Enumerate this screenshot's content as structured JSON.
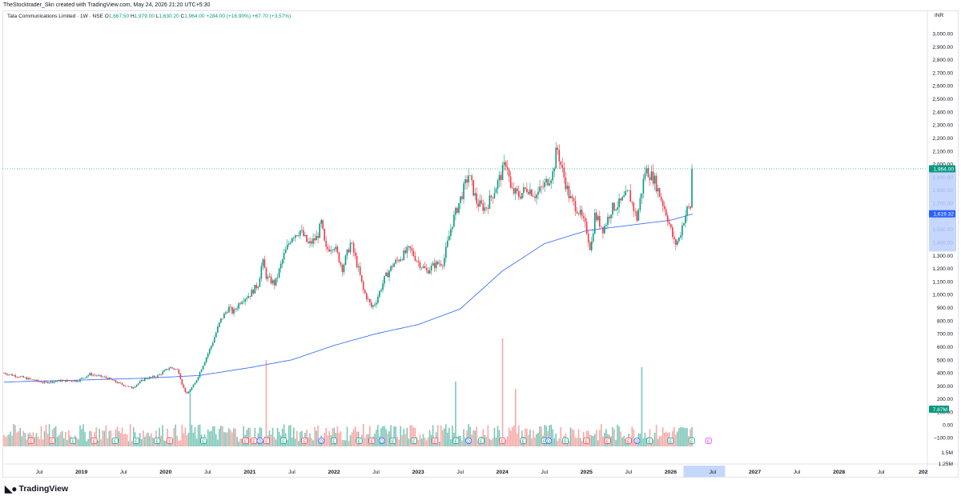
{
  "header": {
    "credit": "TheStocktrader_Skn created with TradingView.com, May 24, 2026 21:20 UTC+5:30"
  },
  "legend": {
    "symbol": "Tata Communications Limited · 1W · NSE",
    "o_label": "O",
    "o_value": "1,667.50",
    "h_label": "H",
    "h_value": "1,979.00",
    "l_label": "L",
    "l_value": "1,630.20",
    "c_label": "C",
    "c_value": "1,964.00",
    "change": "+284.00 (+16.90%)",
    "change2": "+67.70 (+3.57%)"
  },
  "currency": "INR",
  "footer": {
    "brand": "TradingView"
  },
  "colors": {
    "up": "#089981",
    "down": "#f23645",
    "ma": "#2962ff",
    "up_vol": "#7cc7b8",
    "down_vol": "#f7a9a7",
    "axis_text": "#131722",
    "highlight": "#bbd0fb"
  },
  "chart_data": {
    "type": "candlestick",
    "interval": "1W",
    "price_axis": {
      "ticks": [
        3000,
        2900,
        2800,
        2700,
        2600,
        2500,
        2400,
        2300,
        2200,
        2100,
        2000,
        1900,
        1800,
        1700,
        1600,
        1500,
        1400,
        1300,
        1200,
        1100,
        1000,
        900,
        800,
        700,
        600,
        500,
        400,
        300,
        200,
        100
      ],
      "tick_labels": [
        "3,000.00",
        "2,900.00",
        "2,800.00",
        "2,700.00",
        "2,600.00",
        "2,500.00",
        "2,400.00",
        "2,300.00",
        "2,200.00",
        "2,100.00",
        "2,000.00",
        "1,900.00",
        "1,800.00",
        "1,700.00",
        "1,600.00",
        "1,500.00",
        "1,400.00",
        "1,300.00",
        "1,200.00",
        "1,100.00",
        "1,000.00",
        "900.00",
        "800.00",
        "700.00",
        "600.00",
        "500.00",
        "400.00",
        "300.00",
        "200.00",
        "100.00"
      ]
    },
    "volume_axis": {
      "ticks": [
        0,
        -100
      ],
      "tick_labels": [
        "0.00",
        "−100.00"
      ],
      "extra_labels": [
        "1.5M",
        "1.25M"
      ]
    },
    "price_badges": [
      {
        "label": "1,964.00",
        "value": 1964,
        "color": "#089981"
      },
      {
        "label": "1,619.32",
        "value": 1619.32,
        "color": "#2962ff"
      }
    ],
    "volume_badge": {
      "label": "7.87M",
      "color": "#089981"
    },
    "time_axis": {
      "labels": [
        {
          "text": "Jul",
          "year": 2018.5,
          "bold": false
        },
        {
          "text": "2019",
          "year": 2019.0,
          "bold": true
        },
        {
          "text": "Jul",
          "year": 2019.5,
          "bold": false
        },
        {
          "text": "2020",
          "year": 2020.0,
          "bold": true
        },
        {
          "text": "Jul",
          "year": 2020.5,
          "bold": false
        },
        {
          "text": "2021",
          "year": 2021.0,
          "bold": true
        },
        {
          "text": "Jul",
          "year": 2021.5,
          "bold": false
        },
        {
          "text": "2022",
          "year": 2022.0,
          "bold": true
        },
        {
          "text": "Jul",
          "year": 2022.5,
          "bold": false
        },
        {
          "text": "2023",
          "year": 2023.0,
          "bold": true
        },
        {
          "text": "Jul",
          "year": 2023.5,
          "bold": false
        },
        {
          "text": "2024",
          "year": 2024.0,
          "bold": true
        },
        {
          "text": "Jul",
          "year": 2024.5,
          "bold": false
        },
        {
          "text": "2025",
          "year": 2025.0,
          "bold": true
        },
        {
          "text": "Jul",
          "year": 2025.5,
          "bold": false
        },
        {
          "text": "2026",
          "year": 2026.0,
          "bold": true
        },
        {
          "text": "Jul",
          "year": 2026.5,
          "bold": false
        },
        {
          "text": "2027",
          "year": 2027.0,
          "bold": true
        },
        {
          "text": "Jul",
          "year": 2027.5,
          "bold": false
        },
        {
          "text": "2028",
          "year": 2028.0,
          "bold": true
        },
        {
          "text": "Jul",
          "year": 2028.5,
          "bold": false
        },
        {
          "text": "202",
          "year": 2029.0,
          "bold": true
        }
      ],
      "current_label": {
        "text": "",
        "year": 2026.4
      }
    },
    "price_anchors": [
      [
        2018.08,
        398
      ],
      [
        2018.3,
        365
      ],
      [
        2018.55,
        325
      ],
      [
        2018.75,
        340
      ],
      [
        2018.95,
        338
      ],
      [
        2019.1,
        390
      ],
      [
        2019.3,
        362
      ],
      [
        2019.45,
        318
      ],
      [
        2019.6,
        285
      ],
      [
        2019.75,
        355
      ],
      [
        2019.9,
        375
      ],
      [
        2020.05,
        442
      ],
      [
        2020.15,
        420
      ],
      [
        2020.2,
        305
      ],
      [
        2020.25,
        235
      ],
      [
        2020.35,
        320
      ],
      [
        2020.45,
        470
      ],
      [
        2020.55,
        620
      ],
      [
        2020.65,
        800
      ],
      [
        2020.75,
        900
      ],
      [
        2020.8,
        860
      ],
      [
        2020.9,
        960
      ],
      [
        2021.0,
        1000
      ],
      [
        2021.1,
        1080
      ],
      [
        2021.15,
        1260
      ],
      [
        2021.2,
        1130
      ],
      [
        2021.3,
        1080
      ],
      [
        2021.4,
        1290
      ],
      [
        2021.5,
        1450
      ],
      [
        2021.6,
        1490
      ],
      [
        2021.7,
        1380
      ],
      [
        2021.8,
        1440
      ],
      [
        2021.85,
        1550
      ],
      [
        2021.9,
        1340
      ],
      [
        2022.0,
        1380
      ],
      [
        2022.1,
        1200
      ],
      [
        2022.2,
        1400
      ],
      [
        2022.3,
        1170
      ],
      [
        2022.35,
        1030
      ],
      [
        2022.45,
        900
      ],
      [
        2022.5,
        950
      ],
      [
        2022.6,
        1120
      ],
      [
        2022.7,
        1230
      ],
      [
        2022.8,
        1290
      ],
      [
        2022.9,
        1350
      ],
      [
        2023.0,
        1250
      ],
      [
        2023.1,
        1180
      ],
      [
        2023.2,
        1230
      ],
      [
        2023.3,
        1250
      ],
      [
        2023.4,
        1540
      ],
      [
        2023.5,
        1730
      ],
      [
        2023.6,
        1920
      ],
      [
        2023.7,
        1700
      ],
      [
        2023.8,
        1660
      ],
      [
        2023.9,
        1790
      ],
      [
        2024.0,
        1940
      ],
      [
        2024.05,
        2030
      ],
      [
        2024.1,
        1800
      ],
      [
        2024.2,
        1760
      ],
      [
        2024.3,
        1820
      ],
      [
        2024.4,
        1760
      ],
      [
        2024.5,
        1840
      ],
      [
        2024.6,
        1930
      ],
      [
        2024.65,
        2130
      ],
      [
        2024.7,
        1980
      ],
      [
        2024.8,
        1740
      ],
      [
        2024.9,
        1650
      ],
      [
        2025.0,
        1500
      ],
      [
        2025.05,
        1340
      ],
      [
        2025.1,
        1610
      ],
      [
        2025.2,
        1500
      ],
      [
        2025.3,
        1660
      ],
      [
        2025.4,
        1700
      ],
      [
        2025.5,
        1780
      ],
      [
        2025.55,
        1680
      ],
      [
        2025.6,
        1580
      ],
      [
        2025.7,
        1960
      ],
      [
        2025.8,
        1890
      ],
      [
        2025.85,
        1800
      ],
      [
        2025.95,
        1620
      ],
      [
        2026.0,
        1500
      ],
      [
        2026.05,
        1380
      ],
      [
        2026.1,
        1430
      ],
      [
        2026.15,
        1560
      ],
      [
        2026.2,
        1660
      ],
      [
        2026.25,
        1667.5
      ],
      [
        2026.27,
        1964
      ]
    ],
    "ma_anchors": [
      [
        2018.08,
        330
      ],
      [
        2019.0,
        345
      ],
      [
        2019.8,
        360
      ],
      [
        2020.4,
        380
      ],
      [
        2021.0,
        440
      ],
      [
        2021.5,
        500
      ],
      [
        2022.0,
        610
      ],
      [
        2022.5,
        700
      ],
      [
        2023.0,
        770
      ],
      [
        2023.5,
        890
      ],
      [
        2024.0,
        1180
      ],
      [
        2024.5,
        1390
      ],
      [
        2025.0,
        1490
      ],
      [
        2025.5,
        1530
      ],
      [
        2026.0,
        1570
      ],
      [
        2026.27,
        1619
      ]
    ],
    "volume_spikes": [
      {
        "year": 2021.2,
        "mult": 12,
        "up": false
      },
      {
        "year": 2024.0,
        "mult": 16,
        "up": false
      },
      {
        "year": 2023.45,
        "mult": 9,
        "up": true
      },
      {
        "year": 2024.15,
        "mult": 8,
        "up": false
      },
      {
        "year": 2025.65,
        "mult": 11,
        "up": true
      },
      {
        "year": 2025.66,
        "mult": 11,
        "up": true
      },
      {
        "year": 2026.27,
        "mult": 5,
        "up": true
      },
      {
        "year": 2020.3,
        "mult": 8,
        "up": true
      }
    ],
    "events": [
      {
        "year": 2018.4,
        "kind": "E",
        "color": "#f23645"
      },
      {
        "year": 2018.65,
        "kind": "E",
        "color": "#f23645"
      },
      {
        "year": 2018.9,
        "kind": "E",
        "color": "#089981"
      },
      {
        "year": 2019.15,
        "kind": "E",
        "color": "#f23645"
      },
      {
        "year": 2019.4,
        "kind": "E",
        "color": "#089981"
      },
      {
        "year": 2019.65,
        "kind": "E",
        "color": "#089981"
      },
      {
        "year": 2019.9,
        "kind": "E",
        "color": "#089981"
      },
      {
        "year": 2020.05,
        "kind": "E",
        "color": "#f23645"
      },
      {
        "year": 2020.45,
        "kind": "E",
        "color": "#089981"
      },
      {
        "year": 2020.95,
        "kind": "E",
        "color": "#f23645"
      },
      {
        "year": 2021.05,
        "kind": "E",
        "color": "#f23645"
      },
      {
        "year": 2021.12,
        "kind": "D",
        "color": "#2962ff"
      },
      {
        "year": 2021.2,
        "kind": "E",
        "color": "#f23645"
      },
      {
        "year": 2021.4,
        "kind": "E",
        "color": "#089981"
      },
      {
        "year": 2021.65,
        "kind": "E",
        "color": "#f23645"
      },
      {
        "year": 2021.85,
        "kind": "D",
        "color": "#2962ff"
      },
      {
        "year": 2022.0,
        "kind": "E",
        "color": "#089981"
      },
      {
        "year": 2022.3,
        "kind": "E",
        "color": "#089981"
      },
      {
        "year": 2022.45,
        "kind": "E",
        "color": "#f23645"
      },
      {
        "year": 2022.57,
        "kind": "D",
        "color": "#2962ff"
      },
      {
        "year": 2022.7,
        "kind": "E",
        "color": "#089981"
      },
      {
        "year": 2022.95,
        "kind": "E",
        "color": "#089981"
      },
      {
        "year": 2023.2,
        "kind": "E",
        "color": "#f23645"
      },
      {
        "year": 2023.45,
        "kind": "E",
        "color": "#089981"
      },
      {
        "year": 2023.6,
        "kind": "D",
        "color": "#2962ff"
      },
      {
        "year": 2023.75,
        "kind": "E",
        "color": "#089981"
      },
      {
        "year": 2024.0,
        "kind": "E",
        "color": "#f23645"
      },
      {
        "year": 2024.25,
        "kind": "E",
        "color": "#089981"
      },
      {
        "year": 2024.5,
        "kind": "E",
        "color": "#089981"
      },
      {
        "year": 2024.55,
        "kind": "D",
        "color": "#2962ff"
      },
      {
        "year": 2024.75,
        "kind": "E",
        "color": "#089981"
      },
      {
        "year": 2025.0,
        "kind": "E",
        "color": "#f23645"
      },
      {
        "year": 2025.25,
        "kind": "E",
        "color": "#f23645"
      },
      {
        "year": 2025.5,
        "kind": "E",
        "color": "#f23645"
      },
      {
        "year": 2025.6,
        "kind": "D",
        "color": "#2962ff"
      },
      {
        "year": 2025.75,
        "kind": "E",
        "color": "#089981"
      },
      {
        "year": 2026.0,
        "kind": "E",
        "color": "#089981"
      },
      {
        "year": 2026.25,
        "kind": "E",
        "color": "#089981"
      },
      {
        "year": 2026.45,
        "kind": "E",
        "color": "#e040fb"
      }
    ]
  }
}
